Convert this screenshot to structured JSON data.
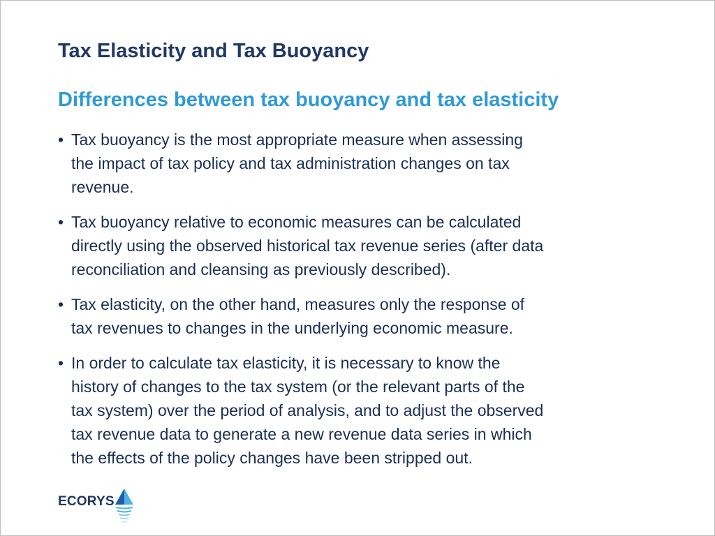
{
  "slide": {
    "title": "Tax Elasticity and Tax Buoyancy",
    "subtitle": "Differences between tax buoyancy and tax elasticity",
    "bullet_marker": "•",
    "bullets": [
      {
        "lines": [
          "Tax buoyancy is the most appropriate measure when assessing",
          "the impact of tax policy and tax administration changes on tax",
          "revenue."
        ]
      },
      {
        "lines": [
          "Tax buoyancy relative to economic measures can be calculated",
          "directly using the observed historical tax revenue series (after data",
          "reconciliation and cleansing as previously described)."
        ]
      },
      {
        "lines": [
          "Tax elasticity, on the other hand, measures only the response of",
          "tax revenues to changes in the underlying economic measure."
        ]
      },
      {
        "lines": [
          "In order to calculate tax elasticity, it is necessary to know the",
          "history of changes to the tax system (or the relevant parts of the",
          "tax system) over the period of analysis, and to adjust the observed",
          "tax revenue data to generate a new revenue data series in which",
          "the effects of the policy changes have been stripped out."
        ]
      }
    ]
  },
  "logo": {
    "text": "ECORYS",
    "icon": "ecorys-triangle-logo-icon"
  },
  "colors": {
    "title": "#1f3864",
    "subtitle": "#2e9ad6",
    "body_text": "#1a2e55",
    "logo_light_blue": "#4fb3e8",
    "logo_dark_blue": "#1f5fa8"
  }
}
